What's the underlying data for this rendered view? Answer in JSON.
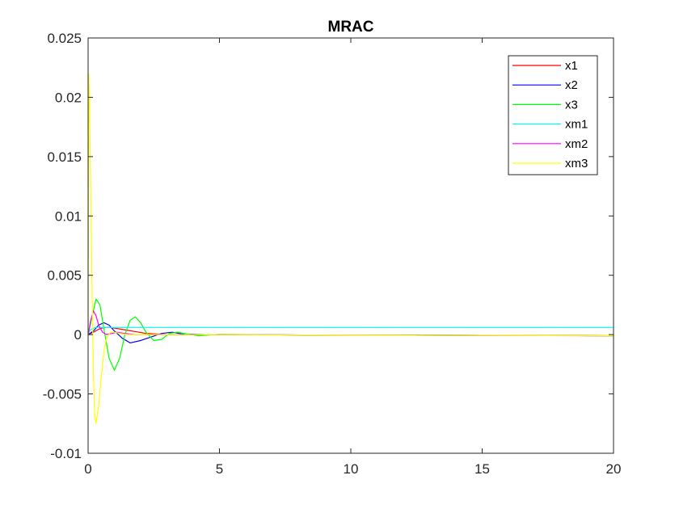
{
  "chart_data": {
    "type": "line",
    "title": "MRAC",
    "xlabel": "",
    "ylabel": "",
    "xlim": [
      0,
      20
    ],
    "ylim": [
      -0.01,
      0.025
    ],
    "xticks": [
      0,
      5,
      10,
      15,
      20
    ],
    "xtick_labels": [
      "0",
      "5",
      "10",
      "15",
      "20"
    ],
    "yticks": [
      -0.01,
      -0.005,
      0,
      0.005,
      0.01,
      0.015,
      0.02,
      0.025
    ],
    "ytick_labels": [
      "-0.01",
      "-0.005",
      "0",
      "0.005",
      "0.01",
      "0.015",
      "0.02",
      "0.025"
    ],
    "grid": false,
    "legend_position": "top-right",
    "series": [
      {
        "name": "x1",
        "color": "#ff0000",
        "x": [
          0,
          0.2,
          0.4,
          0.6,
          0.8,
          1.0,
          1.4,
          1.8,
          2.2,
          2.6,
          3.0,
          3.5,
          4,
          5,
          6,
          8,
          10,
          12,
          14,
          16,
          18,
          20
        ],
        "y": [
          0,
          0.0002,
          0.00045,
          0.0006,
          0.0006,
          0.00055,
          0.0004,
          0.00025,
          0.0001,
          5e-05,
          0.0,
          -2e-05,
          0,
          0,
          -2e-05,
          -3e-05,
          -4e-05,
          -5e-05,
          -6e-05,
          -7e-05,
          -8e-05,
          -0.0001
        ]
      },
      {
        "name": "x2",
        "color": "#0000ff",
        "x": [
          0,
          0.2,
          0.4,
          0.6,
          0.8,
          1.0,
          1.3,
          1.6,
          2.0,
          2.4,
          2.8,
          3.2,
          3.6,
          4.5,
          6,
          8,
          10,
          12,
          14,
          16,
          18,
          20
        ],
        "y": [
          0,
          0.0003,
          0.0008,
          0.001,
          0.0008,
          0.0003,
          -0.0003,
          -0.0007,
          -0.0005,
          -0.0002,
          0.0001,
          0.0002,
          5e-05,
          0,
          0,
          -3e-05,
          -4e-05,
          -5e-05,
          -6e-05,
          -7e-05,
          -8e-05,
          -0.0001
        ]
      },
      {
        "name": "x3",
        "color": "#00ff00",
        "x": [
          0,
          0.15,
          0.3,
          0.45,
          0.6,
          0.8,
          1.0,
          1.2,
          1.4,
          1.6,
          1.8,
          2.0,
          2.2,
          2.5,
          2.8,
          3.1,
          3.4,
          3.8,
          4.2,
          5,
          6,
          8,
          10,
          12,
          14,
          16,
          18,
          20
        ],
        "y": [
          0,
          0.0015,
          0.003,
          0.0025,
          0.0005,
          -0.002,
          -0.003,
          -0.002,
          0.0,
          0.0012,
          0.0015,
          0.001,
          0.0002,
          -0.0005,
          -0.0004,
          0.0001,
          0.0002,
          5e-05,
          -0.0001,
          3e-05,
          0,
          -3e-05,
          -4e-05,
          -5e-05,
          -6e-05,
          -7e-05,
          -8e-05,
          -0.0001
        ]
      },
      {
        "name": "xm1",
        "color": "#00ffff",
        "x": [
          0,
          0.05,
          0.15,
          0.3,
          0.6,
          1.0,
          2,
          5,
          10,
          15,
          20
        ],
        "y": [
          0,
          0.0003,
          0.0005,
          0.0006,
          0.0006,
          0.0006,
          0.0006,
          0.0006,
          0.0006,
          0.0006,
          0.0006
        ]
      },
      {
        "name": "xm2",
        "color": "#ff00ff",
        "x": [
          0,
          0.1,
          0.2,
          0.3,
          0.4,
          0.55,
          0.7,
          0.9,
          1.1,
          1.4,
          1.8,
          2.5,
          3.5,
          5,
          10,
          15,
          20
        ],
        "y": [
          0,
          0.0012,
          0.002,
          0.0016,
          0.0008,
          0.0002,
          0.0,
          0.0001,
          0.0002,
          0.0001,
          0.0,
          0.0,
          0.0,
          0.0,
          -4e-05,
          -7e-05,
          -0.0001
        ]
      },
      {
        "name": "xm3",
        "color": "#ffff00",
        "x": [
          0,
          0.02,
          0.05,
          0.1,
          0.15,
          0.2,
          0.25,
          0.3,
          0.4,
          0.5,
          0.6,
          0.7,
          0.85,
          1.0,
          1.2,
          1.5,
          2,
          3,
          5,
          10,
          15,
          20
        ],
        "y": [
          0,
          0.022,
          0.02,
          0.012,
          0.004,
          -0.003,
          -0.0068,
          -0.0075,
          -0.006,
          -0.0035,
          -0.0015,
          -0.0003,
          0.0002,
          0.0002,
          0.0001,
          0.0,
          0.0,
          0.0,
          0.0,
          -4e-05,
          -7e-05,
          -0.0001
        ]
      }
    ]
  }
}
